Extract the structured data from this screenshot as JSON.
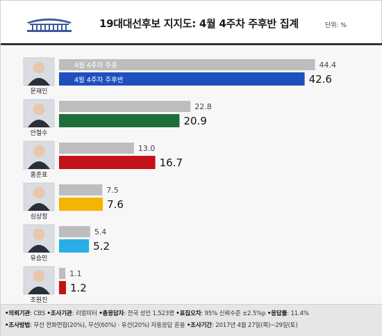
{
  "header": {
    "title": "19대대선후보 지지도: 4월 4주차 주후반 집계",
    "unit": "단위: %"
  },
  "legend": {
    "prev_label": "4월 4주차 주중",
    "curr_label": "4월 4주차 주후반"
  },
  "colors": {
    "prev_bar": "#bdbdbd",
    "moon": "#1f4fbf",
    "ahn": "#1f6e3a",
    "hong": "#c4121a",
    "sim": "#f5b400",
    "yoo": "#29aee6",
    "cho": "#c4121a"
  },
  "chart_data": {
    "type": "bar",
    "orientation": "horizontal",
    "categories": [
      "문재인",
      "안철수",
      "홍준표",
      "심상정",
      "유승민",
      "조원진"
    ],
    "series": [
      {
        "name": "4월 4주차 주중",
        "values": [
          44.4,
          22.8,
          13.0,
          7.5,
          5.4,
          1.1
        ]
      },
      {
        "name": "4월 4주차 주후반",
        "values": [
          42.6,
          20.9,
          16.7,
          7.6,
          5.2,
          1.2
        ]
      }
    ],
    "value_labels_prev": [
      "44.4",
      "22.8",
      "13.0",
      "7.5",
      "5.4",
      "1.1"
    ],
    "value_labels_curr": [
      "42.6",
      "20.9",
      "16.7",
      "7.6",
      "5.2",
      "1.2"
    ],
    "title": "19대대선후보 지지도: 4월 4주차 주후반 집계",
    "unit": "단위: %",
    "grid": false
  },
  "footer": {
    "line1": [
      {
        "key": "•의뢰기관",
        "val": ": CBS "
      },
      {
        "key": "•조사기관",
        "val": ": 리얼미터 "
      },
      {
        "key": "•총응답자",
        "val": ": 전국 성인 1,523명 "
      },
      {
        "key": "•표집오차",
        "val": ": 95% 신뢰수준 ±2.5%p "
      },
      {
        "key": "•응답률",
        "val": ": 11.4%"
      }
    ],
    "line2": [
      {
        "key": "•조사방법",
        "val": ": 무선 전화면접(20%), 무선(60%) · 유선(20%) 자동응답 혼용 "
      },
      {
        "key": "•조사기간",
        "val": ": 2017년 4월 27일(목)~29일(토)"
      }
    ]
  }
}
